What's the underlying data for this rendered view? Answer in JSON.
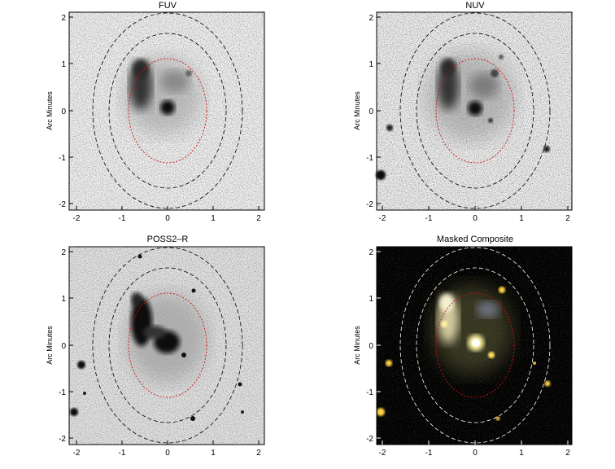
{
  "panels": [
    {
      "title": "FUV",
      "ylabel": "Arc Minutes"
    },
    {
      "title": "NUV",
      "ylabel": "Arc Minutes"
    },
    {
      "title": "POSS2–R",
      "ylabel": "Arc Minutes"
    },
    {
      "title": "Masked Composite",
      "ylabel": "Arc Minutes"
    }
  ],
  "ticks": {
    "x": [
      "-2",
      "-1",
      "0",
      "1",
      "2"
    ],
    "y": [
      "2",
      "1",
      "0",
      "-1",
      "-2"
    ]
  },
  "colors": {
    "outer_ellipse": "#000000",
    "inner_ellipse_red": "#d01010",
    "composite_background": "#000000",
    "composite_glow": "#ffe070",
    "composite_ellipse": "#ffffff"
  }
}
